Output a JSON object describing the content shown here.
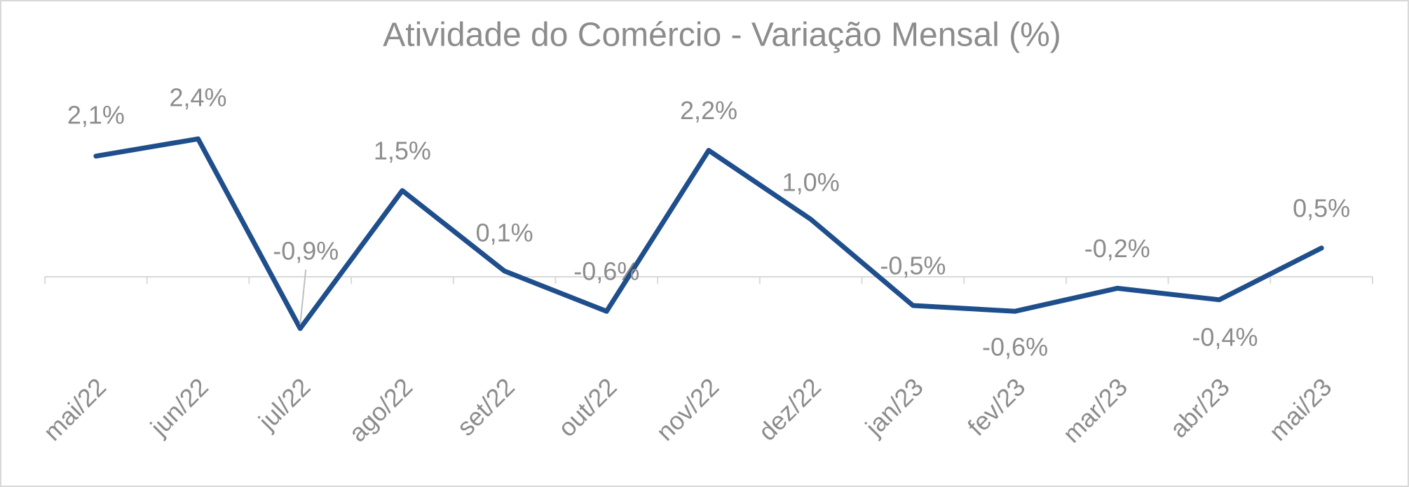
{
  "chart_data": {
    "type": "line",
    "title": "Atividade do Comércio - Variação Mensal (%)",
    "categories": [
      "mai/22",
      "jun/22",
      "jul/22",
      "ago/22",
      "set/22",
      "out/22",
      "nov/22",
      "dez/22",
      "jan/23",
      "fev/23",
      "mar/23",
      "abr/23",
      "mai/23"
    ],
    "values": [
      2.1,
      2.4,
      -0.9,
      1.5,
      0.1,
      -0.6,
      2.2,
      1.0,
      -0.5,
      -0.6,
      -0.2,
      -0.4,
      0.5
    ],
    "value_labels": [
      "2,1%",
      "2,4%",
      "-0,9%",
      "1,5%",
      "0,1%",
      "-0,6%",
      "2,2%",
      "1,0%",
      "-0,5%",
      "-0,6%",
      "-0,2%",
      "-0,4%",
      "0,5%"
    ],
    "color": "#1f4e8c",
    "ylim": [
      -1.5,
      3
    ]
  }
}
